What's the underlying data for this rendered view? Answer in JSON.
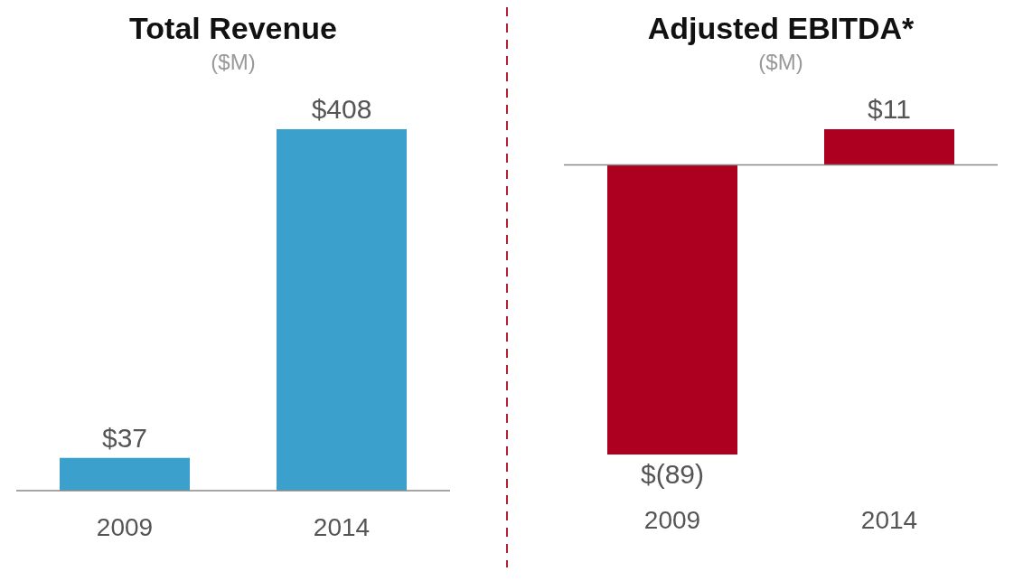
{
  "chart_data": [
    {
      "type": "bar",
      "title": "Total Revenue",
      "subtitle": "($M)",
      "categories": [
        "2009",
        "2014"
      ],
      "values": [
        37,
        408
      ],
      "value_labels": [
        "$37",
        "$408"
      ],
      "color": "#3ba0cc"
    },
    {
      "type": "bar",
      "title": "Adjusted EBITDA*",
      "subtitle": "($M)",
      "categories": [
        "2009",
        "2014"
      ],
      "values": [
        -89,
        11
      ],
      "value_labels": [
        "$(89)",
        "$11"
      ],
      "color": "#ad0020"
    }
  ]
}
